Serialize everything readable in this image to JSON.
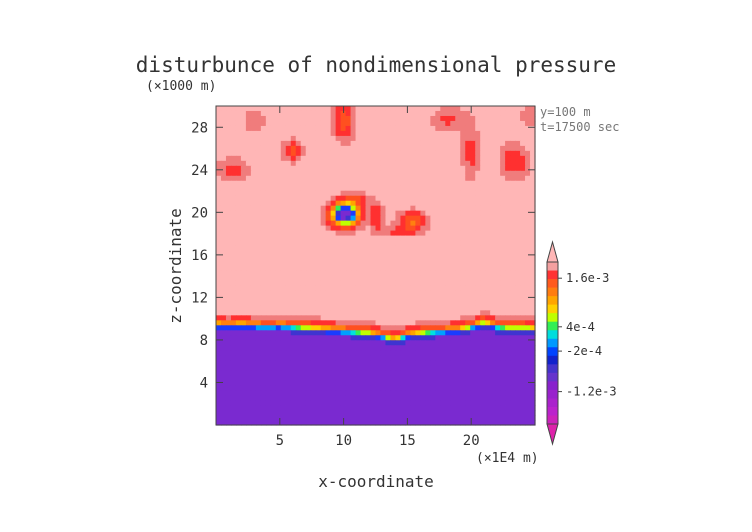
{
  "chart_data": {
    "type": "heatmap",
    "title": "disturbunce of nondimensional pressure",
    "xlabel": "x-coordinate",
    "ylabel": "z-coordinate",
    "x_unit": "(×1E4 m)",
    "y_unit": "(×1000 m)",
    "annotations": [
      "y=100 m",
      "t=17500 sec"
    ],
    "xlim": [
      0,
      25
    ],
    "ylim": [
      0,
      30
    ],
    "xticks": [
      5,
      10,
      15,
      20
    ],
    "xtick_labels": [
      "5",
      "10",
      "15",
      "20"
    ],
    "yticks": [
      4,
      8,
      12,
      16,
      20,
      24,
      28
    ],
    "ytick_labels": [
      "4",
      "8",
      "12",
      "16",
      "20",
      "24",
      "28"
    ],
    "colorbar": {
      "tick_labels": [
        "1.6e-3",
        "4e-4",
        "-2e-4",
        "-1.2e-3"
      ],
      "tick_values": [
        0.0016,
        0.0004,
        -0.0002,
        -0.0012
      ],
      "top_color": "#ffb6b6",
      "bottom_color": "#dd22aa",
      "bands": [
        "#f4a0a0",
        "#ff3333",
        "#ff5a1e",
        "#ff7d10",
        "#ffa500",
        "#ffd000",
        "#bfff00",
        "#33ee55",
        "#00dddd",
        "#0099ff",
        "#0044ff",
        "#1122cc",
        "#4433cc",
        "#6633cc",
        "#8822cc",
        "#9922cc",
        "#aa22cc",
        "#bb22cc",
        "#cc22bb"
      ]
    },
    "field": {
      "background_value": 0.0022,
      "lower_value": -0.0014,
      "interface_z": [
        9.6,
        9.5,
        9.6,
        9.5,
        9.4,
        9.5,
        9.4,
        9.3,
        9.2,
        9.1,
        9.0,
        8.9,
        8.8,
        8.5,
        8.2,
        8.6,
        8.8,
        8.9,
        9.0,
        9.1,
        9.4,
        9.8,
        9.4,
        9.3,
        9.3,
        9.2
      ],
      "features": [
        {
          "x": 10.1,
          "z": 19.8,
          "rx": 1.2,
          "rz": 1.2,
          "amp": -0.0036
        },
        {
          "x": 15.4,
          "z": 19.2,
          "rx": 1.1,
          "rz": 0.9,
          "amp": -0.0015
        },
        {
          "x": 12.6,
          "z": 19.6,
          "rx": 0.5,
          "rz": 1.3,
          "amp": -0.001
        },
        {
          "x": 11.0,
          "z": 21.2,
          "rx": 1.0,
          "rz": 0.6,
          "amp": -0.0008
        },
        {
          "x": 14.2,
          "z": 18.2,
          "rx": 1.5,
          "rz": 0.5,
          "amp": -0.0007
        },
        {
          "x": 6.0,
          "z": 25.8,
          "rx": 0.8,
          "rz": 1.0,
          "amp": -0.0011
        },
        {
          "x": 1.3,
          "z": 24.0,
          "rx": 1.2,
          "rz": 1.1,
          "amp": -0.0008
        },
        {
          "x": 10.0,
          "z": 28.6,
          "rx": 0.9,
          "rz": 1.8,
          "amp": -0.0012
        },
        {
          "x": 3.0,
          "z": 28.6,
          "rx": 0.9,
          "rz": 1.2,
          "amp": -0.0006
        },
        {
          "x": 20.0,
          "z": 25.6,
          "rx": 0.7,
          "rz": 2.4,
          "amp": -0.0008
        },
        {
          "x": 23.4,
          "z": 24.8,
          "rx": 1.1,
          "rz": 1.6,
          "amp": -0.001
        },
        {
          "x": 18.3,
          "z": 28.8,
          "rx": 1.4,
          "rz": 1.2,
          "amp": -0.0007
        },
        {
          "x": 24.8,
          "z": 29.0,
          "rx": 1.0,
          "rz": 1.0,
          "amp": -0.0006
        }
      ]
    }
  }
}
